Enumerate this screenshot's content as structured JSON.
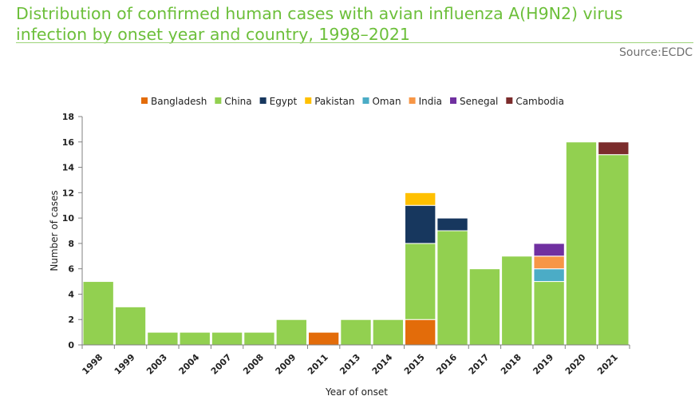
{
  "header": {
    "title": "Distribution of confirmed human cases with avian influenza A(H9N2) virus infection by onset year and country, 1998–2021",
    "source": "Source:ECDC"
  },
  "chart_data": {
    "type": "bar",
    "stacked": true,
    "title": "",
    "xlabel": "Year of onset",
    "ylabel": "Number of cases",
    "ylim": [
      0,
      18
    ],
    "yticks": [
      0,
      2,
      4,
      6,
      8,
      10,
      12,
      14,
      16,
      18
    ],
    "grid": false,
    "legend_position": "top",
    "categories": [
      "1998",
      "1999",
      "2003",
      "2004",
      "2007",
      "2008",
      "2009",
      "2011",
      "2013",
      "2014",
      "2015",
      "2016",
      "2017",
      "2018",
      "2019",
      "2020",
      "2021"
    ],
    "series": [
      {
        "name": "Bangladesh",
        "color": "#e36c0a",
        "values": [
          0,
          0,
          0,
          0,
          0,
          0,
          0,
          1,
          0,
          0,
          2,
          0,
          0,
          0,
          0,
          0,
          0
        ]
      },
      {
        "name": "China",
        "color": "#92d050",
        "values": [
          5,
          3,
          1,
          1,
          1,
          1,
          2,
          0,
          2,
          2,
          6,
          9,
          6,
          7,
          5,
          16,
          15
        ]
      },
      {
        "name": "Egypt",
        "color": "#17375e",
        "values": [
          0,
          0,
          0,
          0,
          0,
          0,
          0,
          0,
          0,
          0,
          3,
          1,
          0,
          0,
          0,
          0,
          0
        ]
      },
      {
        "name": "Pakistan",
        "color": "#ffc000",
        "values": [
          0,
          0,
          0,
          0,
          0,
          0,
          0,
          0,
          0,
          0,
          1,
          0,
          0,
          0,
          0,
          0,
          0
        ]
      },
      {
        "name": "Oman",
        "color": "#4bacc6",
        "values": [
          0,
          0,
          0,
          0,
          0,
          0,
          0,
          0,
          0,
          0,
          0,
          0,
          0,
          0,
          1,
          0,
          0
        ]
      },
      {
        "name": "India",
        "color": "#f79646",
        "values": [
          0,
          0,
          0,
          0,
          0,
          0,
          0,
          0,
          0,
          0,
          0,
          0,
          0,
          0,
          1,
          0,
          0
        ]
      },
      {
        "name": "Senegal",
        "color": "#7030a0",
        "values": [
          0,
          0,
          0,
          0,
          0,
          0,
          0,
          0,
          0,
          0,
          0,
          0,
          0,
          0,
          1,
          0,
          0
        ]
      },
      {
        "name": "Cambodia",
        "color": "#7b2c2c",
        "values": [
          0,
          0,
          0,
          0,
          0,
          0,
          0,
          0,
          0,
          0,
          0,
          0,
          0,
          0,
          0,
          0,
          1
        ]
      }
    ]
  }
}
